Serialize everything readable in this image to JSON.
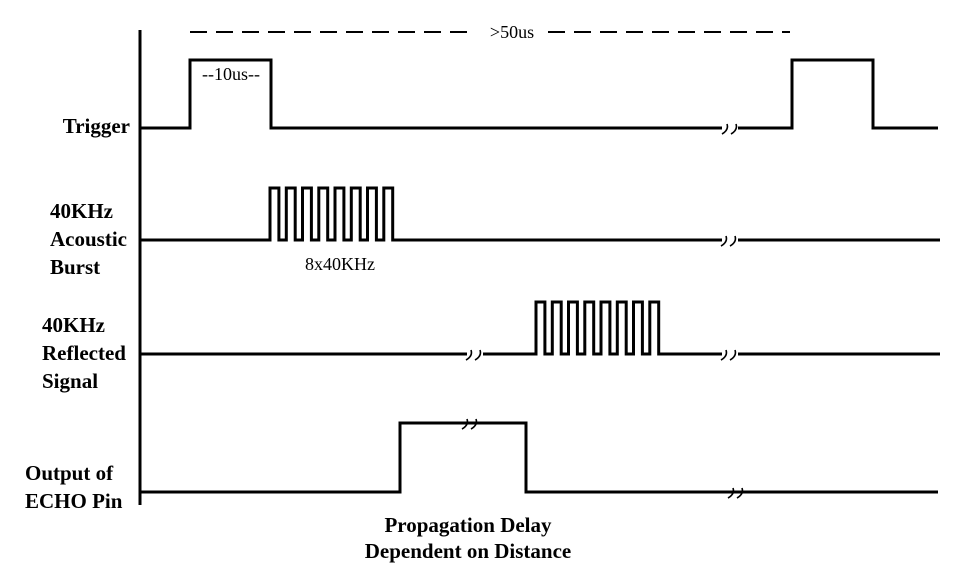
{
  "signals": {
    "trigger": {
      "label_lines": [
        "Trigger"
      ]
    },
    "burst": {
      "label_lines": [
        "40KHz",
        "Acoustic",
        "Burst"
      ],
      "pulse_count": 8
    },
    "reflected": {
      "label_lines": [
        "40KHz",
        "Reflected",
        "Signal"
      ],
      "pulse_count": 8
    },
    "echo": {
      "label_lines": [
        "Output of",
        "ECHO Pin"
      ]
    }
  },
  "annotations": {
    "pulse_width": "--10us--",
    "period": ">50us",
    "burst_spec": "8x40KHz"
  },
  "caption": {
    "line1": "Propagation Delay",
    "line2": "Dependent on Distance"
  },
  "colors": {
    "line": "#000000",
    "background": "#ffffff"
  }
}
